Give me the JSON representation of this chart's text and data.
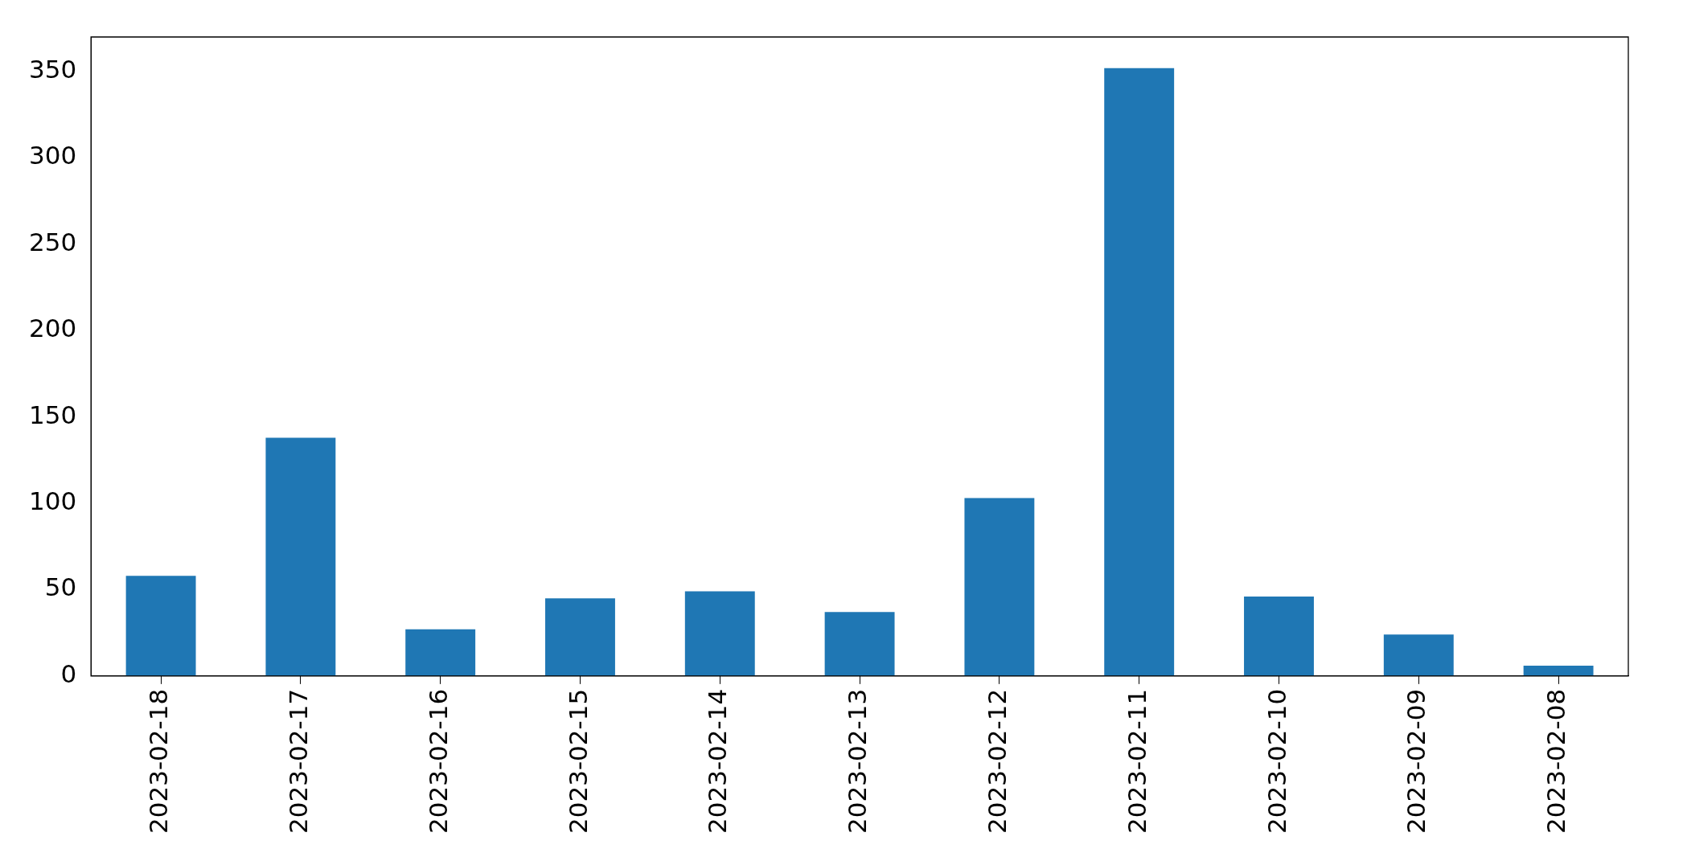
{
  "chart_data": {
    "type": "bar",
    "categories": [
      "2023-02-18",
      "2023-02-17",
      "2023-02-16",
      "2023-02-15",
      "2023-02-14",
      "2023-02-13",
      "2023-02-12",
      "2023-02-11",
      "2023-02-10",
      "2023-02-09",
      "2023-02-08"
    ],
    "values": [
      58,
      138,
      27,
      45,
      49,
      37,
      103,
      352,
      46,
      24,
      6
    ],
    "color": "#1f77b4",
    "ylim": [
      0,
      370
    ],
    "yticks": [
      0,
      50,
      100,
      150,
      200,
      250,
      300,
      350
    ],
    "grid": false,
    "legend": false
  }
}
